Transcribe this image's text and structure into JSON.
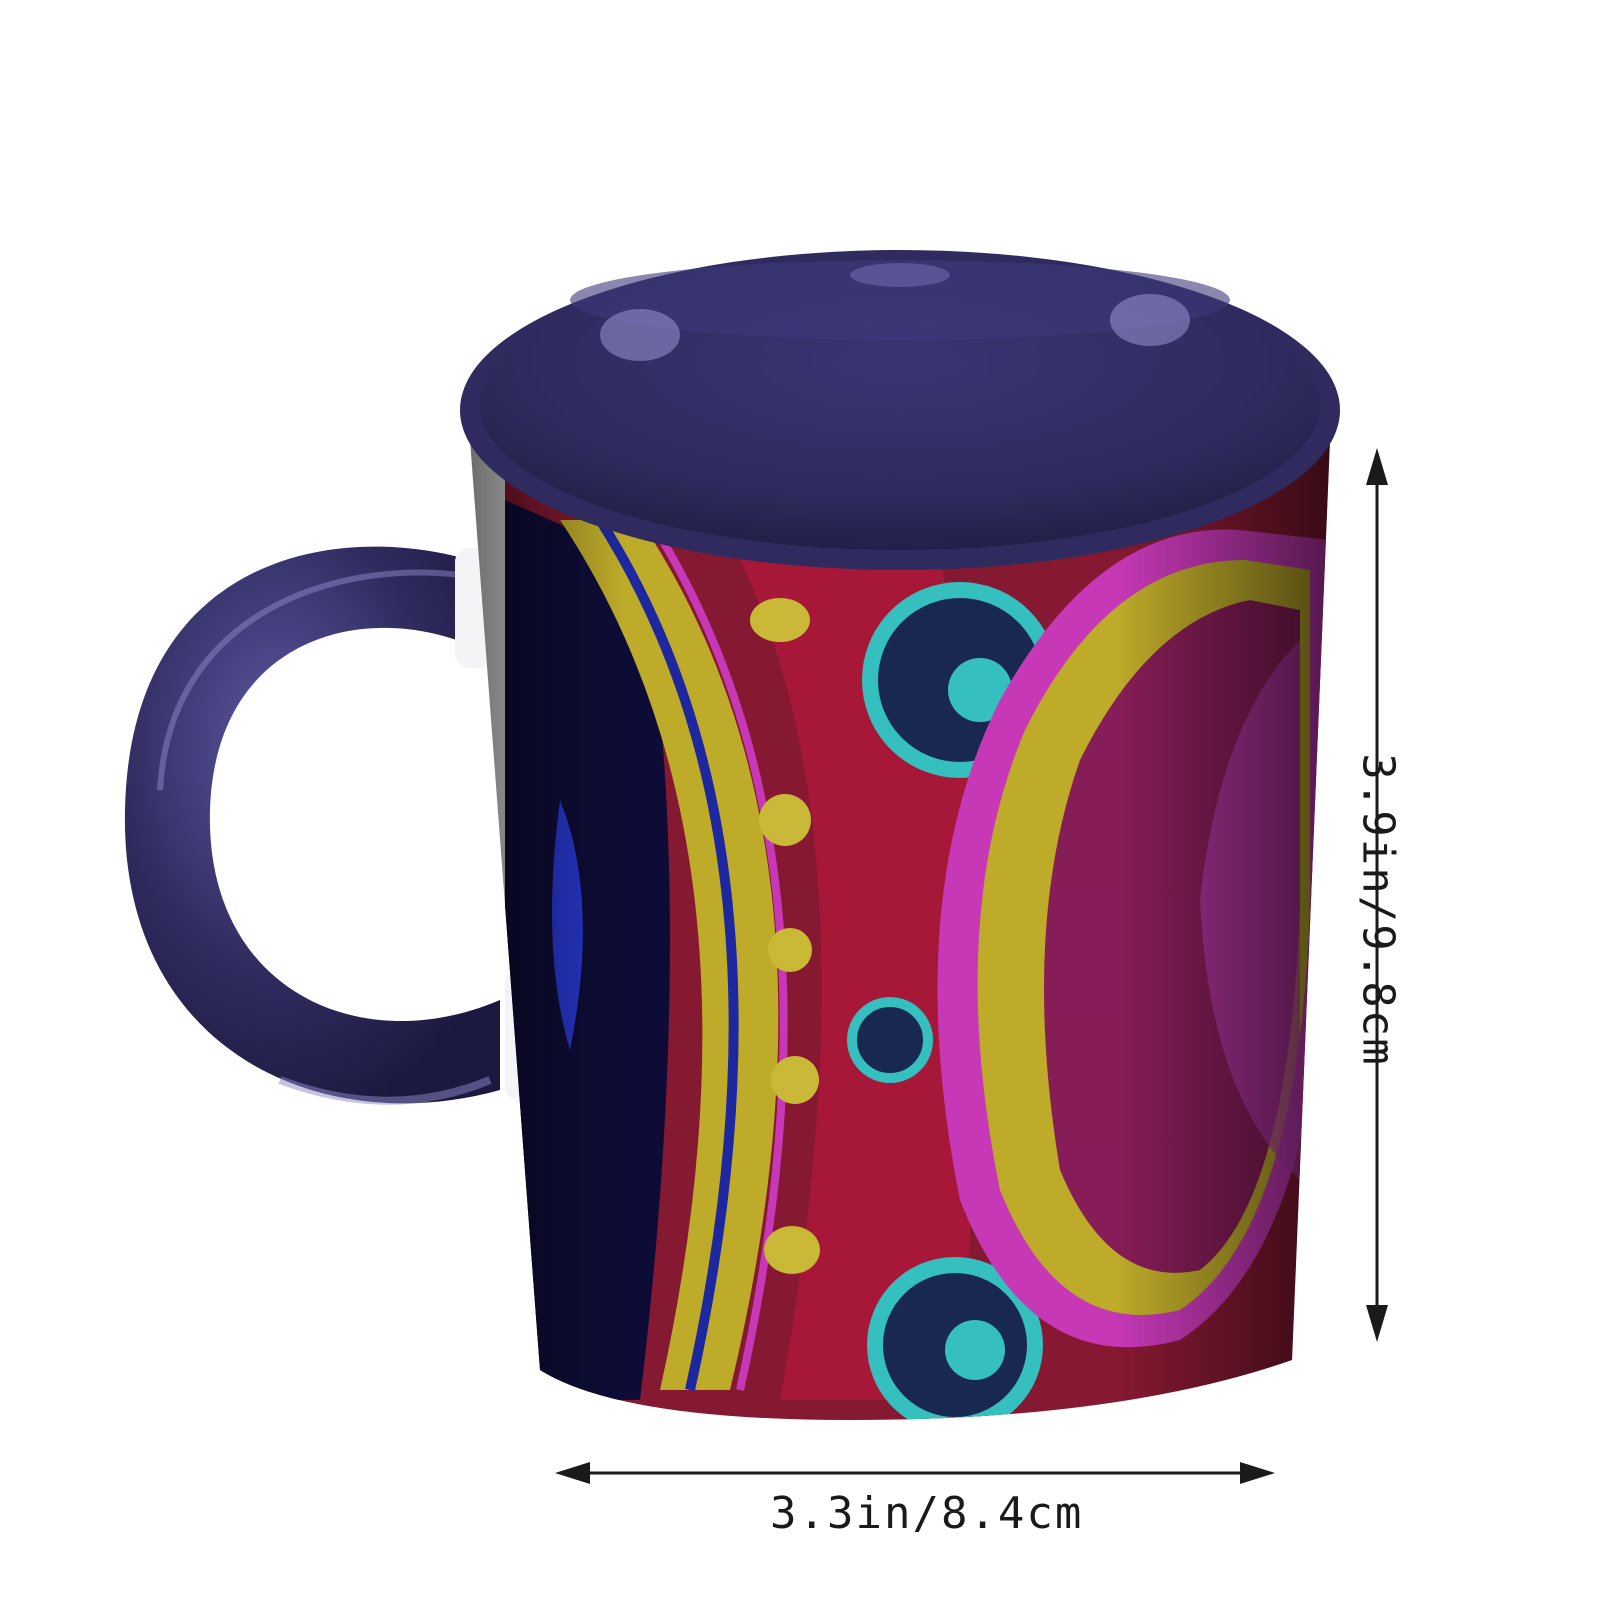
{
  "product": {
    "mug_color": "#2f2b5e",
    "pattern_colors": [
      "#c8b42c",
      "#b0183a",
      "#d13bc0",
      "#38c9c9",
      "#1e2aa8"
    ]
  },
  "dimensions": {
    "width_label": "3.3in/8.4cm",
    "height_label": "3.9in/9.8cm"
  }
}
